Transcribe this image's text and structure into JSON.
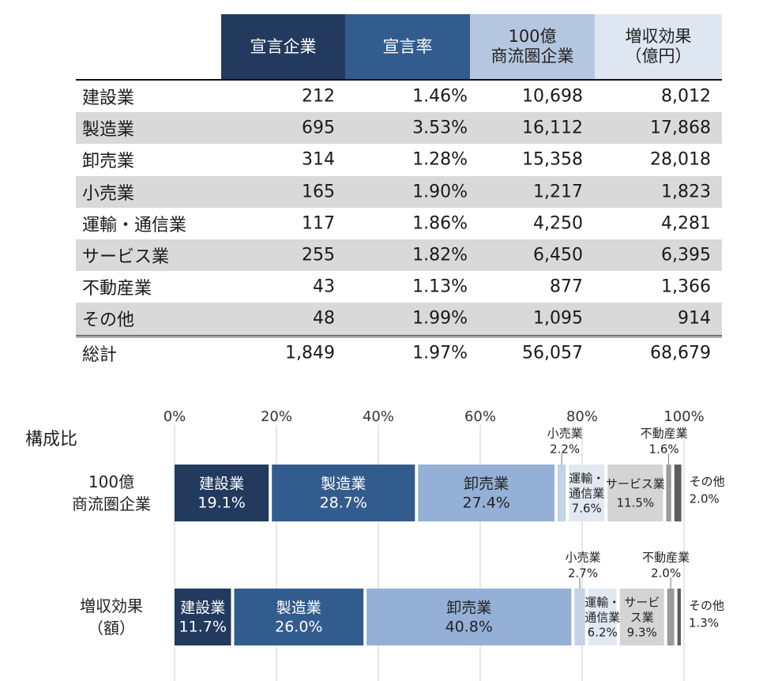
{
  "table": {
    "headers": [
      "宣言企業",
      "宣言率",
      "100億\n商流圏企業",
      "増収効果\n（億円）"
    ],
    "rows": [
      {
        "label": "建設業",
        "declared": "212",
        "rate": "1.46%",
        "firms": "10,698",
        "effect": "8,012"
      },
      {
        "label": "製造業",
        "declared": "695",
        "rate": "3.53%",
        "firms": "16,112",
        "effect": "17,868"
      },
      {
        "label": "卸売業",
        "declared": "314",
        "rate": "1.28%",
        "firms": "15,358",
        "effect": "28,018"
      },
      {
        "label": "小売業",
        "declared": "165",
        "rate": "1.90%",
        "firms": "1,217",
        "effect": "1,823"
      },
      {
        "label": "運輸・通信業",
        "declared": "117",
        "rate": "1.86%",
        "firms": "4,250",
        "effect": "4,281"
      },
      {
        "label": "サービス業",
        "declared": "255",
        "rate": "1.82%",
        "firms": "6,450",
        "effect": "6,395"
      },
      {
        "label": "不動産業",
        "declared": "43",
        "rate": "1.13%",
        "firms": "877",
        "effect": "1,366"
      },
      {
        "label": "その他",
        "declared": "48",
        "rate": "1.99%",
        "firms": "1,095",
        "effect": "914"
      }
    ],
    "total": {
      "label": "総計",
      "declared": "1,849",
      "rate": "1.97%",
      "firms": "56,057",
      "effect": "68,679"
    }
  },
  "chart_data": {
    "type": "bar",
    "orientation": "horizontal-stacked-100",
    "title": "構成比",
    "xlim": [
      0,
      100
    ],
    "ticks": [
      "0%",
      "20%",
      "40%",
      "60%",
      "80%",
      "100%"
    ],
    "tick_values": [
      0,
      20,
      40,
      60,
      80,
      100
    ],
    "categories": [
      "100億\n商流圏企業",
      "増収効果\n（額）"
    ],
    "series": [
      {
        "name": "建設業",
        "values": [
          19.1,
          11.7
        ],
        "color": "#223a5e",
        "labels": [
          "建設業\n19.1%",
          "建設業\n11.7%"
        ],
        "mode": [
          "inside",
          "inside"
        ]
      },
      {
        "name": "製造業",
        "values": [
          28.7,
          26.0
        ],
        "color": "#335c8e",
        "labels": [
          "製造業\n28.7%",
          "製造業\n26.0%"
        ],
        "mode": [
          "inside",
          "inside"
        ]
      },
      {
        "name": "卸売業",
        "values": [
          27.4,
          40.8
        ],
        "color": "#94b0d6",
        "labels": [
          "卸売業\n27.4%",
          "卸売業\n40.8%"
        ],
        "mode": [
          "inside",
          "inside"
        ]
      },
      {
        "name": "小売業",
        "values": [
          2.2,
          2.7
        ],
        "color": "#c2d3e8",
        "labels": [
          "小売業\n2.2%",
          "小売業\n2.7%"
        ],
        "mode": [
          "above",
          "above"
        ]
      },
      {
        "name": "運輸・通信業",
        "values": [
          7.6,
          6.2
        ],
        "color": "#e1e8f2",
        "labels": [
          "運輸・\n通信業\n7.6%",
          "運輸・\n通信業\n6.2%"
        ],
        "mode": [
          "inside",
          "inside"
        ]
      },
      {
        "name": "サービス業",
        "values": [
          11.5,
          9.3
        ],
        "color": "#d4d4d4",
        "labels": [
          "サービス業\n11.5%",
          "サービ\nス業\n9.3%"
        ],
        "mode": [
          "inside",
          "inside"
        ]
      },
      {
        "name": "不動産業",
        "values": [
          1.6,
          2.0
        ],
        "color": "#9a9a9a",
        "labels": [
          "不動産業\n1.6%",
          "不動産業\n2.0%"
        ],
        "mode": [
          "above",
          "above"
        ]
      },
      {
        "name": "その他",
        "values": [
          2.0,
          1.3
        ],
        "color": "#5e5e5e",
        "labels": [
          "その他\n2.0%",
          "その他\n1.3%"
        ],
        "mode": [
          "right",
          "right"
        ]
      }
    ]
  }
}
